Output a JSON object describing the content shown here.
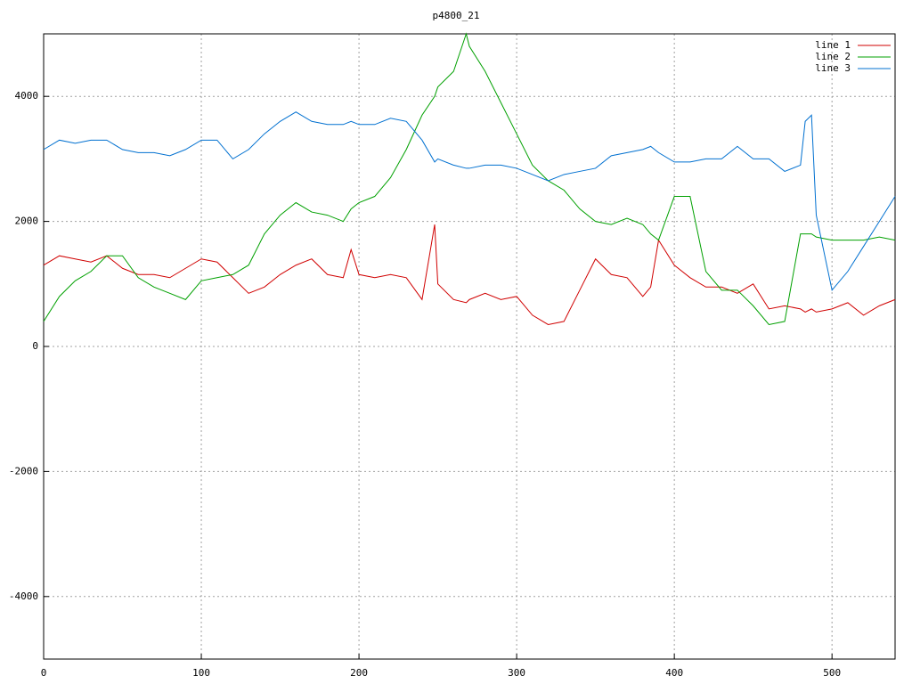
{
  "chart_data": {
    "type": "line",
    "title": "p4800_21",
    "x": [
      0,
      10,
      20,
      30,
      40,
      50,
      60,
      70,
      80,
      90,
      100,
      110,
      120,
      130,
      140,
      150,
      160,
      170,
      180,
      190,
      195,
      200,
      210,
      220,
      230,
      240,
      248,
      250,
      260,
      268,
      270,
      280,
      290,
      300,
      310,
      320,
      330,
      340,
      350,
      360,
      370,
      380,
      385,
      390,
      400,
      410,
      420,
      430,
      440,
      450,
      460,
      470,
      480,
      483,
      487,
      490,
      500,
      510,
      520,
      530,
      540
    ],
    "series": [
      {
        "name": "line 1",
        "color": "#d00000",
        "values": [
          1300,
          1450,
          1400,
          1350,
          1450,
          1250,
          1150,
          1150,
          1100,
          1250,
          1400,
          1350,
          1100,
          850,
          950,
          1150,
          1300,
          1400,
          1150,
          1100,
          1550,
          1150,
          1100,
          1150,
          1100,
          750,
          1950,
          1000,
          750,
          700,
          750,
          850,
          750,
          800,
          500,
          350,
          400,
          900,
          1400,
          1150,
          1100,
          800,
          950,
          1700,
          1300,
          1100,
          950,
          950,
          850,
          1000,
          600,
          650,
          600,
          550,
          600,
          550,
          600,
          700,
          500,
          650,
          750
        ]
      },
      {
        "name": "line 2",
        "color": "#00a000",
        "values": [
          400,
          800,
          1050,
          1200,
          1450,
          1450,
          1100,
          950,
          850,
          750,
          1050,
          1100,
          1150,
          1300,
          1800,
          2100,
          2300,
          2150,
          2100,
          2000,
          2200,
          2300,
          2400,
          2700,
          3150,
          3700,
          4000,
          4150,
          4400,
          5000,
          4800,
          4400,
          3900,
          3400,
          2900,
          2650,
          2500,
          2200,
          2000,
          1950,
          2050,
          1950,
          1800,
          1700,
          2400,
          2400,
          1200,
          900,
          900,
          650,
          350,
          400,
          1800,
          1800,
          1800,
          1750,
          1700,
          1700,
          1700,
          1750,
          1700
        ]
      },
      {
        "name": "line 3",
        "color": "#0070d0",
        "values": [
          3150,
          3300,
          3250,
          3300,
          3300,
          3150,
          3100,
          3100,
          3050,
          3150,
          3300,
          3300,
          3000,
          3150,
          3400,
          3600,
          3750,
          3600,
          3550,
          3550,
          3600,
          3550,
          3550,
          3650,
          3600,
          3300,
          2950,
          3000,
          2900,
          2850,
          2850,
          2900,
          2900,
          2850,
          2750,
          2650,
          2750,
          2800,
          2850,
          3050,
          3100,
          3150,
          3200,
          3100,
          2950,
          2950,
          3000,
          3000,
          3200,
          3000,
          3000,
          2800,
          2900,
          3600,
          3700,
          2100,
          900,
          1200,
          1600,
          2000,
          2400
        ]
      }
    ],
    "xlim": [
      0,
      540
    ],
    "ylim": [
      -5000,
      5000
    ],
    "xticks": [
      0,
      100,
      200,
      300,
      400,
      500
    ],
    "yticks": [
      -4000,
      -2000,
      0,
      2000,
      4000
    ],
    "grid": true,
    "legend": "top-right"
  }
}
